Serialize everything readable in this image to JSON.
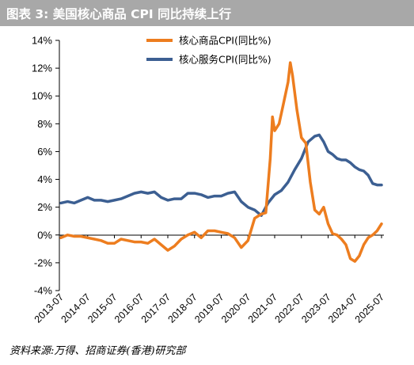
{
  "header": {
    "title": "图表 3:   美国核心商品 CPI 同比持续上行"
  },
  "footer": {
    "source": "资料来源:万得、招商证券(香港)研究部"
  },
  "chart_data": {
    "type": "line",
    "yunit": "%",
    "ylim": [
      -4,
      14
    ],
    "y_ticks": [
      -4,
      -2,
      0,
      2,
      4,
      6,
      8,
      10,
      12,
      14
    ],
    "y_tick_labels": [
      "-4%",
      "-2%",
      "0%",
      "2%",
      "4%",
      "6%",
      "8%",
      "10%",
      "12%",
      "14%"
    ],
    "x_ticks": [
      "2013-07",
      "2014-07",
      "2015-07",
      "2016-07",
      "2017-07",
      "2018-07",
      "2019-07",
      "2020-07",
      "2021-07",
      "2022-07",
      "2023-07",
      "2024-07",
      "2025-07"
    ],
    "grid": false,
    "legend_position": "top-center",
    "series": [
      {
        "name": "核心商品CPI(同比%)",
        "color": "#ed7d1f",
        "points": [
          [
            "2013-07",
            -0.2
          ],
          [
            "2013-10",
            0.0
          ],
          [
            "2014-01",
            -0.1
          ],
          [
            "2014-04",
            -0.1
          ],
          [
            "2014-07",
            -0.2
          ],
          [
            "2014-10",
            -0.3
          ],
          [
            "2015-01",
            -0.4
          ],
          [
            "2015-04",
            -0.6
          ],
          [
            "2015-07",
            -0.6
          ],
          [
            "2015-10",
            -0.3
          ],
          [
            "2016-01",
            -0.4
          ],
          [
            "2016-04",
            -0.5
          ],
          [
            "2016-07",
            -0.5
          ],
          [
            "2016-10",
            -0.6
          ],
          [
            "2017-01",
            -0.3
          ],
          [
            "2017-04",
            -0.7
          ],
          [
            "2017-07",
            -1.1
          ],
          [
            "2017-10",
            -0.8
          ],
          [
            "2018-01",
            -0.3
          ],
          [
            "2018-04",
            0.0
          ],
          [
            "2018-07",
            0.2
          ],
          [
            "2018-10",
            -0.2
          ],
          [
            "2019-01",
            0.3
          ],
          [
            "2019-04",
            0.3
          ],
          [
            "2019-07",
            0.2
          ],
          [
            "2019-10",
            0.1
          ],
          [
            "2020-01",
            -0.2
          ],
          [
            "2020-04",
            -0.9
          ],
          [
            "2020-07",
            -0.4
          ],
          [
            "2020-10",
            1.2
          ],
          [
            "2021-01",
            1.5
          ],
          [
            "2021-03",
            1.6
          ],
          [
            "2021-05",
            5.5
          ],
          [
            "2021-06",
            8.5
          ],
          [
            "2021-07",
            7.5
          ],
          [
            "2021-09",
            8.0
          ],
          [
            "2021-11",
            9.5
          ],
          [
            "2022-01",
            11.0
          ],
          [
            "2022-02",
            12.4
          ],
          [
            "2022-03",
            11.5
          ],
          [
            "2022-05",
            9.0
          ],
          [
            "2022-07",
            7.0
          ],
          [
            "2022-09",
            6.6
          ],
          [
            "2022-11",
            3.8
          ],
          [
            "2023-01",
            1.8
          ],
          [
            "2023-03",
            1.5
          ],
          [
            "2023-05",
            2.0
          ],
          [
            "2023-07",
            0.8
          ],
          [
            "2023-09",
            0.1
          ],
          [
            "2023-11",
            0.0
          ],
          [
            "2024-01",
            -0.3
          ],
          [
            "2024-03",
            -0.7
          ],
          [
            "2024-05",
            -1.7
          ],
          [
            "2024-07",
            -1.9
          ],
          [
            "2024-09",
            -1.5
          ],
          [
            "2024-11",
            -0.7
          ],
          [
            "2025-01",
            -0.2
          ],
          [
            "2025-03",
            0.0
          ],
          [
            "2025-05",
            0.3
          ],
          [
            "2025-07",
            0.8
          ]
        ]
      },
      {
        "name": "核心服务CPI(同比%)",
        "color": "#3c5f92",
        "points": [
          [
            "2013-07",
            2.3
          ],
          [
            "2013-10",
            2.4
          ],
          [
            "2014-01",
            2.3
          ],
          [
            "2014-04",
            2.5
          ],
          [
            "2014-07",
            2.7
          ],
          [
            "2014-10",
            2.5
          ],
          [
            "2015-01",
            2.5
          ],
          [
            "2015-04",
            2.4
          ],
          [
            "2015-07",
            2.5
          ],
          [
            "2015-10",
            2.6
          ],
          [
            "2016-01",
            2.8
          ],
          [
            "2016-04",
            3.0
          ],
          [
            "2016-07",
            3.1
          ],
          [
            "2016-10",
            3.0
          ],
          [
            "2017-01",
            3.1
          ],
          [
            "2017-04",
            2.7
          ],
          [
            "2017-07",
            2.5
          ],
          [
            "2017-10",
            2.6
          ],
          [
            "2018-01",
            2.6
          ],
          [
            "2018-04",
            3.0
          ],
          [
            "2018-07",
            3.0
          ],
          [
            "2018-10",
            2.9
          ],
          [
            "2019-01",
            2.7
          ],
          [
            "2019-04",
            2.8
          ],
          [
            "2019-07",
            2.8
          ],
          [
            "2019-10",
            3.0
          ],
          [
            "2020-01",
            3.1
          ],
          [
            "2020-04",
            2.4
          ],
          [
            "2020-07",
            2.0
          ],
          [
            "2020-10",
            1.8
          ],
          [
            "2021-01",
            1.4
          ],
          [
            "2021-04",
            2.3
          ],
          [
            "2021-07",
            2.9
          ],
          [
            "2021-10",
            3.2
          ],
          [
            "2022-01",
            3.8
          ],
          [
            "2022-04",
            4.7
          ],
          [
            "2022-07",
            5.5
          ],
          [
            "2022-10",
            6.7
          ],
          [
            "2023-01",
            7.1
          ],
          [
            "2023-03",
            7.2
          ],
          [
            "2023-05",
            6.7
          ],
          [
            "2023-07",
            6.0
          ],
          [
            "2023-09",
            5.8
          ],
          [
            "2023-11",
            5.5
          ],
          [
            "2024-01",
            5.4
          ],
          [
            "2024-03",
            5.4
          ],
          [
            "2024-05",
            5.2
          ],
          [
            "2024-07",
            4.9
          ],
          [
            "2024-09",
            4.7
          ],
          [
            "2024-11",
            4.6
          ],
          [
            "2025-01",
            4.3
          ],
          [
            "2025-03",
            3.7
          ],
          [
            "2025-05",
            3.6
          ],
          [
            "2025-07",
            3.6
          ]
        ]
      }
    ]
  }
}
